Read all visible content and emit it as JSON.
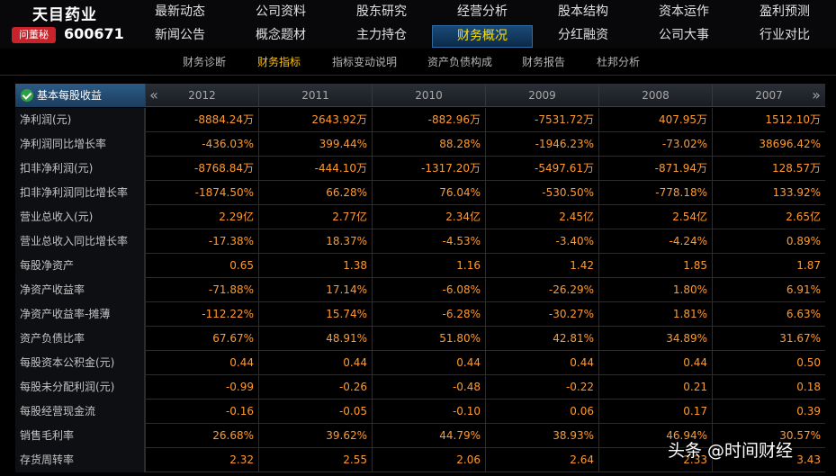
{
  "brand": {
    "name": "天目药业",
    "ask_badge": "问董秘",
    "code": "600671"
  },
  "nav": {
    "row1": [
      "最新动态",
      "公司资料",
      "股东研究",
      "经营分析",
      "股本结构",
      "资本运作",
      "盈利预测"
    ],
    "row2": [
      "新闻公告",
      "概念题材",
      "主力持仓",
      "财务概况",
      "分红融资",
      "公司大事",
      "行业对比"
    ],
    "active_row2_index": 3
  },
  "subnav": [
    "财务诊断",
    "财务指标",
    "指标变动说明",
    "资产负债构成",
    "财务报告",
    "杜邦分析"
  ],
  "subnav_active_index": 1,
  "table": {
    "section_title": "基本每股收益",
    "years": [
      "2012",
      "2011",
      "2010",
      "2009",
      "2008",
      "2007"
    ],
    "rows": [
      {
        "label": "净利润(元)",
        "values": [
          "-8884.24万",
          "2643.92万",
          "-882.96万",
          "-7531.72万",
          "407.95万",
          "1512.10万"
        ]
      },
      {
        "label": "净利润同比增长率",
        "values": [
          "-436.03%",
          "399.44%",
          "88.28%",
          "-1946.23%",
          "-73.02%",
          "38696.42%"
        ]
      },
      {
        "label": "扣非净利润(元)",
        "values": [
          "-8768.84万",
          "-444.10万",
          "-1317.20万",
          "-5497.61万",
          "-871.94万",
          "128.57万"
        ]
      },
      {
        "label": "扣非净利润同比增长率",
        "values": [
          "-1874.50%",
          "66.28%",
          "76.04%",
          "-530.50%",
          "-778.18%",
          "133.92%"
        ]
      },
      {
        "label": "营业总收入(元)",
        "values": [
          "2.29亿",
          "2.77亿",
          "2.34亿",
          "2.45亿",
          "2.54亿",
          "2.65亿"
        ]
      },
      {
        "label": "营业总收入同比增长率",
        "values": [
          "-17.38%",
          "18.37%",
          "-4.53%",
          "-3.40%",
          "-4.24%",
          "0.89%"
        ]
      },
      {
        "label": "每股净资产",
        "values": [
          "0.65",
          "1.38",
          "1.16",
          "1.42",
          "1.85",
          "1.87"
        ]
      },
      {
        "label": "净资产收益率",
        "values": [
          "-71.88%",
          "17.14%",
          "-6.08%",
          "-26.29%",
          "1.80%",
          "6.91%"
        ]
      },
      {
        "label": "净资产收益率-摊薄",
        "values": [
          "-112.22%",
          "15.74%",
          "-6.28%",
          "-30.27%",
          "1.81%",
          "6.63%"
        ]
      },
      {
        "label": "资产负债比率",
        "values": [
          "67.67%",
          "48.91%",
          "51.80%",
          "42.81%",
          "34.89%",
          "31.67%"
        ]
      },
      {
        "label": "每股资本公积金(元)",
        "values": [
          "0.44",
          "0.44",
          "0.44",
          "0.44",
          "0.44",
          "0.50"
        ]
      },
      {
        "label": "每股未分配利润(元)",
        "values": [
          "-0.99",
          "-0.26",
          "-0.48",
          "-0.22",
          "0.21",
          "0.18"
        ]
      },
      {
        "label": "每股经营现金流",
        "values": [
          "-0.16",
          "-0.05",
          "-0.10",
          "0.06",
          "0.17",
          "0.39"
        ]
      },
      {
        "label": "销售毛利率",
        "values": [
          "26.68%",
          "39.62%",
          "44.79%",
          "38.93%",
          "46.94%",
          "30.57%"
        ]
      },
      {
        "label": "存货周转率",
        "values": [
          "2.32",
          "2.55",
          "2.06",
          "2.64",
          "2.33",
          "3.43"
        ]
      }
    ]
  },
  "watermark": "头条 @时间财经",
  "colors": {
    "value": "#ff9a2e",
    "active_tab_text": "#ffe000",
    "active_sub": "#ffc000",
    "badge": "#c8232a"
  },
  "icons": {
    "section": "check-circle-icon",
    "prev": "double-chevron-left-icon",
    "next": "double-chevron-right-icon"
  }
}
